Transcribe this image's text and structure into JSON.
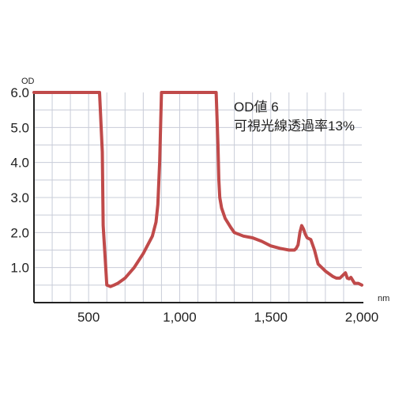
{
  "chart_data": {
    "type": "line",
    "title": "",
    "xlabel": "nm",
    "ylabel": "OD",
    "xlim": [
      200,
      2000
    ],
    "ylim": [
      0,
      6.0
    ],
    "grid": true,
    "legend": "none",
    "x_ticks": [
      500,
      1000,
      1500,
      2000
    ],
    "x_tick_labels": [
      "500",
      "1,000",
      "1,500",
      "2,000"
    ],
    "y_ticks": [
      1.0,
      2.0,
      3.0,
      4.0,
      5.0,
      6.0
    ],
    "y_tick_labels": [
      "1.0",
      "2.0",
      "3.0",
      "4.0",
      "5.0",
      "6.0"
    ],
    "annotations": [
      "OD値 6",
      "可視光線透過率13%"
    ],
    "colors": {
      "line": "#c04a4a",
      "grid": "#c8ccd8",
      "axis": "#222222"
    },
    "series": [
      {
        "name": "",
        "x": [
          200,
          560,
          575,
          580,
          600,
          620,
          640,
          660,
          700,
          750,
          800,
          850,
          870,
          880,
          890,
          900,
          1200,
          1210,
          1215,
          1220,
          1230,
          1250,
          1280,
          1300,
          1350,
          1400,
          1450,
          1500,
          1550,
          1600,
          1630,
          1640,
          1650,
          1660,
          1670,
          1680,
          1690,
          1700,
          1720,
          1740,
          1760,
          1800,
          1840,
          1860,
          1880,
          1900,
          1910,
          1920,
          1930,
          1940,
          1960,
          1980,
          2000
        ],
        "y": [
          6.0,
          6.0,
          4.3,
          2.2,
          0.5,
          0.46,
          0.5,
          0.55,
          0.7,
          1.0,
          1.4,
          1.9,
          2.3,
          2.8,
          4.0,
          6.0,
          6.0,
          4.5,
          3.5,
          3.0,
          2.7,
          2.4,
          2.15,
          2.0,
          1.9,
          1.85,
          1.75,
          1.62,
          1.55,
          1.5,
          1.5,
          1.55,
          1.65,
          2.0,
          2.2,
          2.1,
          1.95,
          1.85,
          1.8,
          1.5,
          1.1,
          0.9,
          0.75,
          0.7,
          0.7,
          0.8,
          0.85,
          0.7,
          0.68,
          0.72,
          0.55,
          0.55,
          0.5
        ]
      }
    ]
  }
}
